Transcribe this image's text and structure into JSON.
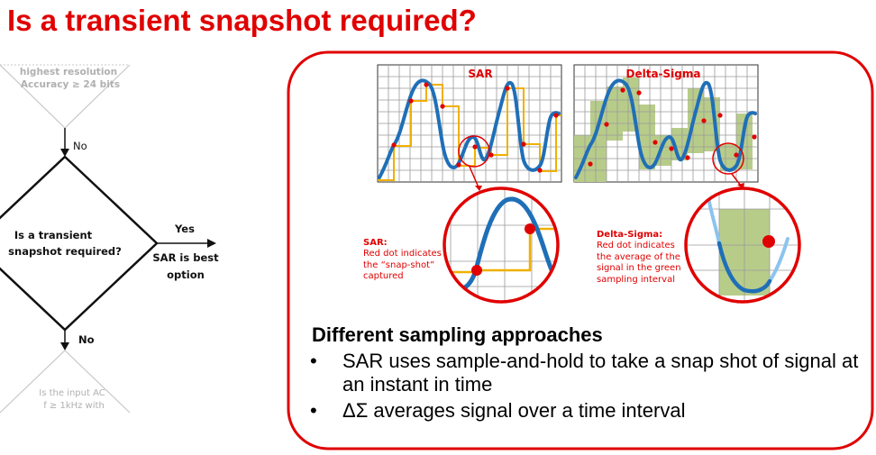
{
  "title": "Is a transient snapshot required?",
  "flowchart": {
    "top_diamond_text": [
      "highest resolution",
      "Accuracy ≥ 24 bits"
    ],
    "no_label_top": "No",
    "decision_text": [
      "Is a transient",
      "snapshot required?"
    ],
    "yes_label": "Yes",
    "result_text": [
      "SAR is best",
      "option"
    ],
    "no_label_bottom": "No",
    "bottom_diamond_text": [
      "Is the input AC",
      "f ≥ 1kHz with"
    ]
  },
  "charts": {
    "sar_label": "SAR",
    "delta_sigma_label": "Delta-Sigma"
  },
  "notes": {
    "sar_title": "SAR:",
    "sar_body": "Red dot indicates\nthe “snap-shot”\ncaptured",
    "ds_title": "Delta-Sigma:",
    "ds_body": "Red dot indicates\nthe average of the\nsignal in the green\nsampling interval"
  },
  "summary": {
    "heading": "Different sampling approaches",
    "bullets": [
      "SAR uses sample-and-hold to take a snap shot of signal at an instant in time",
      "ΔΣ averages signal over a time interval"
    ]
  },
  "colors": {
    "accent_red": "#e00000",
    "signal_blue": "#1f6fb8",
    "sample_hold_orange": "#f0b000",
    "interval_green": "#b8cc8a"
  }
}
